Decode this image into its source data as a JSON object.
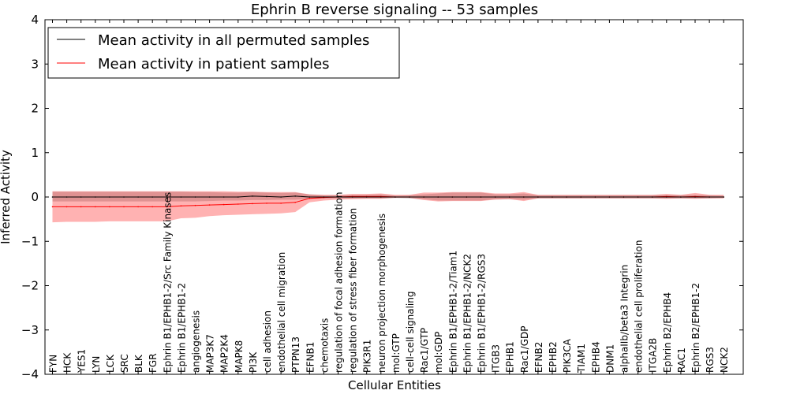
{
  "chart_data": {
    "type": "line",
    "title": "Ephrin B reverse signaling -- 53 samples",
    "xlabel": "Cellular Entities",
    "ylabel": "Inferred Activity",
    "ylim": [
      -4,
      4
    ],
    "yticks": [
      -4,
      -3,
      -2,
      -1,
      0,
      1,
      2,
      3,
      4
    ],
    "ytick_labels": [
      "−4",
      "−3",
      "−2",
      "−1",
      "0",
      "1",
      "2",
      "3",
      "4"
    ],
    "legend_position": "top-left",
    "grid": false,
    "categories": [
      "FYN",
      "HCK",
      "YES1",
      "LYN",
      "LCK",
      "SRC",
      "BLK",
      "FGR",
      "Ephrin B1/EPHB1-2/Src Family Kinases",
      "Ephrin B1/EPHB1-2",
      "angiogenesis",
      "MAP3K7",
      "MAP2K4",
      "MAPK8",
      "PI3K",
      "cell adhesion",
      "endothelial cell migration",
      "PTPN13",
      "EFNB1",
      "chemotaxis",
      "regulation of focal adhesion formation",
      "regulation of stress fiber formation",
      "PIK3R1",
      "neuron projection morphogenesis",
      "mol:GTP",
      "cell-cell signaling",
      "Rac1/GTP",
      "mol:GDP",
      "Ephrin B1/EPHB1-2/Tiam1",
      "Ephrin B1/EPHB1-2/NCK2",
      "Ephrin B1/EPHB1-2/RGS3",
      "ITGB3",
      "EPHB1",
      "Rac1/GDP",
      "EFNB2",
      "EPHB2",
      "PIK3CA",
      "TIAM1",
      "EPHB4",
      "DNM1",
      "alphaIIb/beta3 Integrin",
      "endothelial cell proliferation",
      "ITGA2B",
      "Ephrin B2/EPHB4",
      "RAC1",
      "Ephrin B2/EPHB1-2",
      "RGS3",
      "NCK2"
    ],
    "series": [
      {
        "name": "Mean activity in all permuted samples",
        "color": "#000000",
        "values": [
          0.0,
          0.0,
          0.0,
          0.0,
          0.0,
          0.0,
          0.0,
          0.0,
          0.0,
          0.0,
          0.0,
          0.0,
          0.0,
          0.0,
          0.02,
          0.01,
          0.0,
          0.02,
          0.0,
          0.0,
          0.0,
          0.0,
          0.0,
          0.0,
          0.0,
          0.0,
          0.0,
          0.0,
          0.0,
          0.0,
          0.0,
          0.0,
          0.0,
          0.0,
          0.0,
          0.0,
          0.0,
          0.0,
          0.0,
          0.0,
          0.0,
          0.0,
          0.0,
          0.0,
          0.0,
          0.0,
          0.0,
          0.0
        ],
        "band_upper": [
          0.12,
          0.12,
          0.12,
          0.12,
          0.12,
          0.12,
          0.12,
          0.12,
          0.12,
          0.12,
          0.11,
          0.11,
          0.1,
          0.1,
          0.11,
          0.1,
          0.09,
          0.1,
          0.06,
          0.04,
          0.04,
          0.05,
          0.05,
          0.06,
          0.03,
          0.04,
          0.06,
          0.08,
          0.1,
          0.1,
          0.1,
          0.06,
          0.06,
          0.08,
          0.04,
          0.04,
          0.04,
          0.04,
          0.04,
          0.04,
          0.04,
          0.04,
          0.04,
          0.05,
          0.04,
          0.05,
          0.04,
          0.03
        ],
        "band_lower": [
          -0.1,
          -0.1,
          -0.1,
          -0.1,
          -0.1,
          -0.1,
          -0.1,
          -0.1,
          -0.1,
          -0.1,
          -0.1,
          -0.09,
          -0.08,
          -0.08,
          -0.07,
          -0.07,
          -0.06,
          -0.06,
          -0.04,
          -0.03,
          -0.03,
          -0.03,
          -0.03,
          -0.03,
          -0.02,
          -0.03,
          -0.05,
          -0.08,
          -0.08,
          -0.08,
          -0.08,
          -0.05,
          -0.05,
          -0.06,
          -0.03,
          -0.03,
          -0.03,
          -0.03,
          -0.03,
          -0.03,
          -0.03,
          -0.03,
          -0.03,
          -0.03,
          -0.03,
          -0.03,
          -0.03,
          -0.02
        ]
      },
      {
        "name": "Mean activity in patient samples",
        "color": "#ff0000",
        "fill": "#ff0000",
        "values": [
          -0.22,
          -0.22,
          -0.22,
          -0.22,
          -0.22,
          -0.22,
          -0.22,
          -0.22,
          -0.22,
          -0.2,
          -0.19,
          -0.18,
          -0.17,
          -0.16,
          -0.15,
          -0.14,
          -0.14,
          -0.12,
          -0.03,
          -0.01,
          0.0,
          0.01,
          0.01,
          0.01,
          0.0,
          0.0,
          0.0,
          0.0,
          0.0,
          0.0,
          0.0,
          0.0,
          0.0,
          0.0,
          0.0,
          0.0,
          0.0,
          0.0,
          0.0,
          0.0,
          0.0,
          0.0,
          0.0,
          0.01,
          0.0,
          0.01,
          0.0,
          0.0
        ],
        "band_upper": [
          0.13,
          0.13,
          0.13,
          0.13,
          0.13,
          0.13,
          0.13,
          0.13,
          0.13,
          0.13,
          0.13,
          0.13,
          0.13,
          0.12,
          0.12,
          0.11,
          0.11,
          0.11,
          0.06,
          0.05,
          0.05,
          0.07,
          0.07,
          0.08,
          0.05,
          0.05,
          0.1,
          0.1,
          0.11,
          0.11,
          0.11,
          0.08,
          0.08,
          0.11,
          0.05,
          0.05,
          0.05,
          0.05,
          0.05,
          0.05,
          0.05,
          0.05,
          0.05,
          0.07,
          0.05,
          0.09,
          0.05,
          0.05
        ],
        "band_lower": [
          -0.57,
          -0.56,
          -0.56,
          -0.56,
          -0.55,
          -0.55,
          -0.55,
          -0.55,
          -0.55,
          -0.48,
          -0.47,
          -0.43,
          -0.41,
          -0.4,
          -0.39,
          -0.38,
          -0.37,
          -0.34,
          -0.12,
          -0.08,
          -0.06,
          -0.05,
          -0.04,
          -0.04,
          -0.02,
          -0.02,
          -0.07,
          -0.1,
          -0.09,
          -0.09,
          -0.09,
          -0.06,
          -0.05,
          -0.09,
          -0.03,
          -0.03,
          -0.03,
          -0.03,
          -0.03,
          -0.03,
          -0.03,
          -0.03,
          -0.03,
          -0.04,
          -0.03,
          -0.04,
          -0.03,
          -0.03
        ]
      }
    ]
  }
}
